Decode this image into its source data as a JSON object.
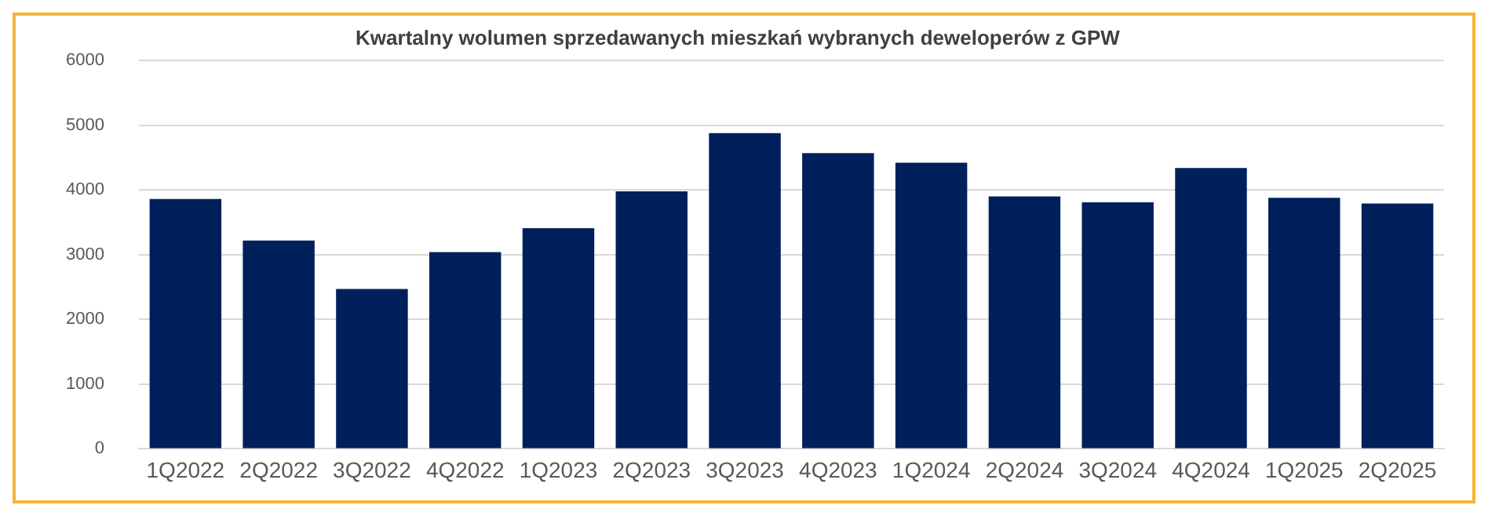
{
  "chart_data": {
    "type": "bar",
    "title": "Kwartalny wolumen sprzedawanych mieszkań wybranych deweloperów z GPW",
    "categories": [
      "1Q2022",
      "2Q2022",
      "3Q2022",
      "4Q2022",
      "1Q2023",
      "2Q2023",
      "3Q2023",
      "4Q2023",
      "1Q2024",
      "2Q2024",
      "3Q2024",
      "4Q2024",
      "1Q2025",
      "2Q2025"
    ],
    "values": [
      3860,
      3220,
      2470,
      3040,
      3410,
      3980,
      4880,
      4570,
      4420,
      3900,
      3810,
      4340,
      3880,
      3790
    ],
    "color": "#00205b",
    "ylim": [
      0,
      6000
    ],
    "yticks": [
      0,
      1000,
      2000,
      3000,
      4000,
      5000,
      6000
    ],
    "grid": "y",
    "legend": false
  }
}
